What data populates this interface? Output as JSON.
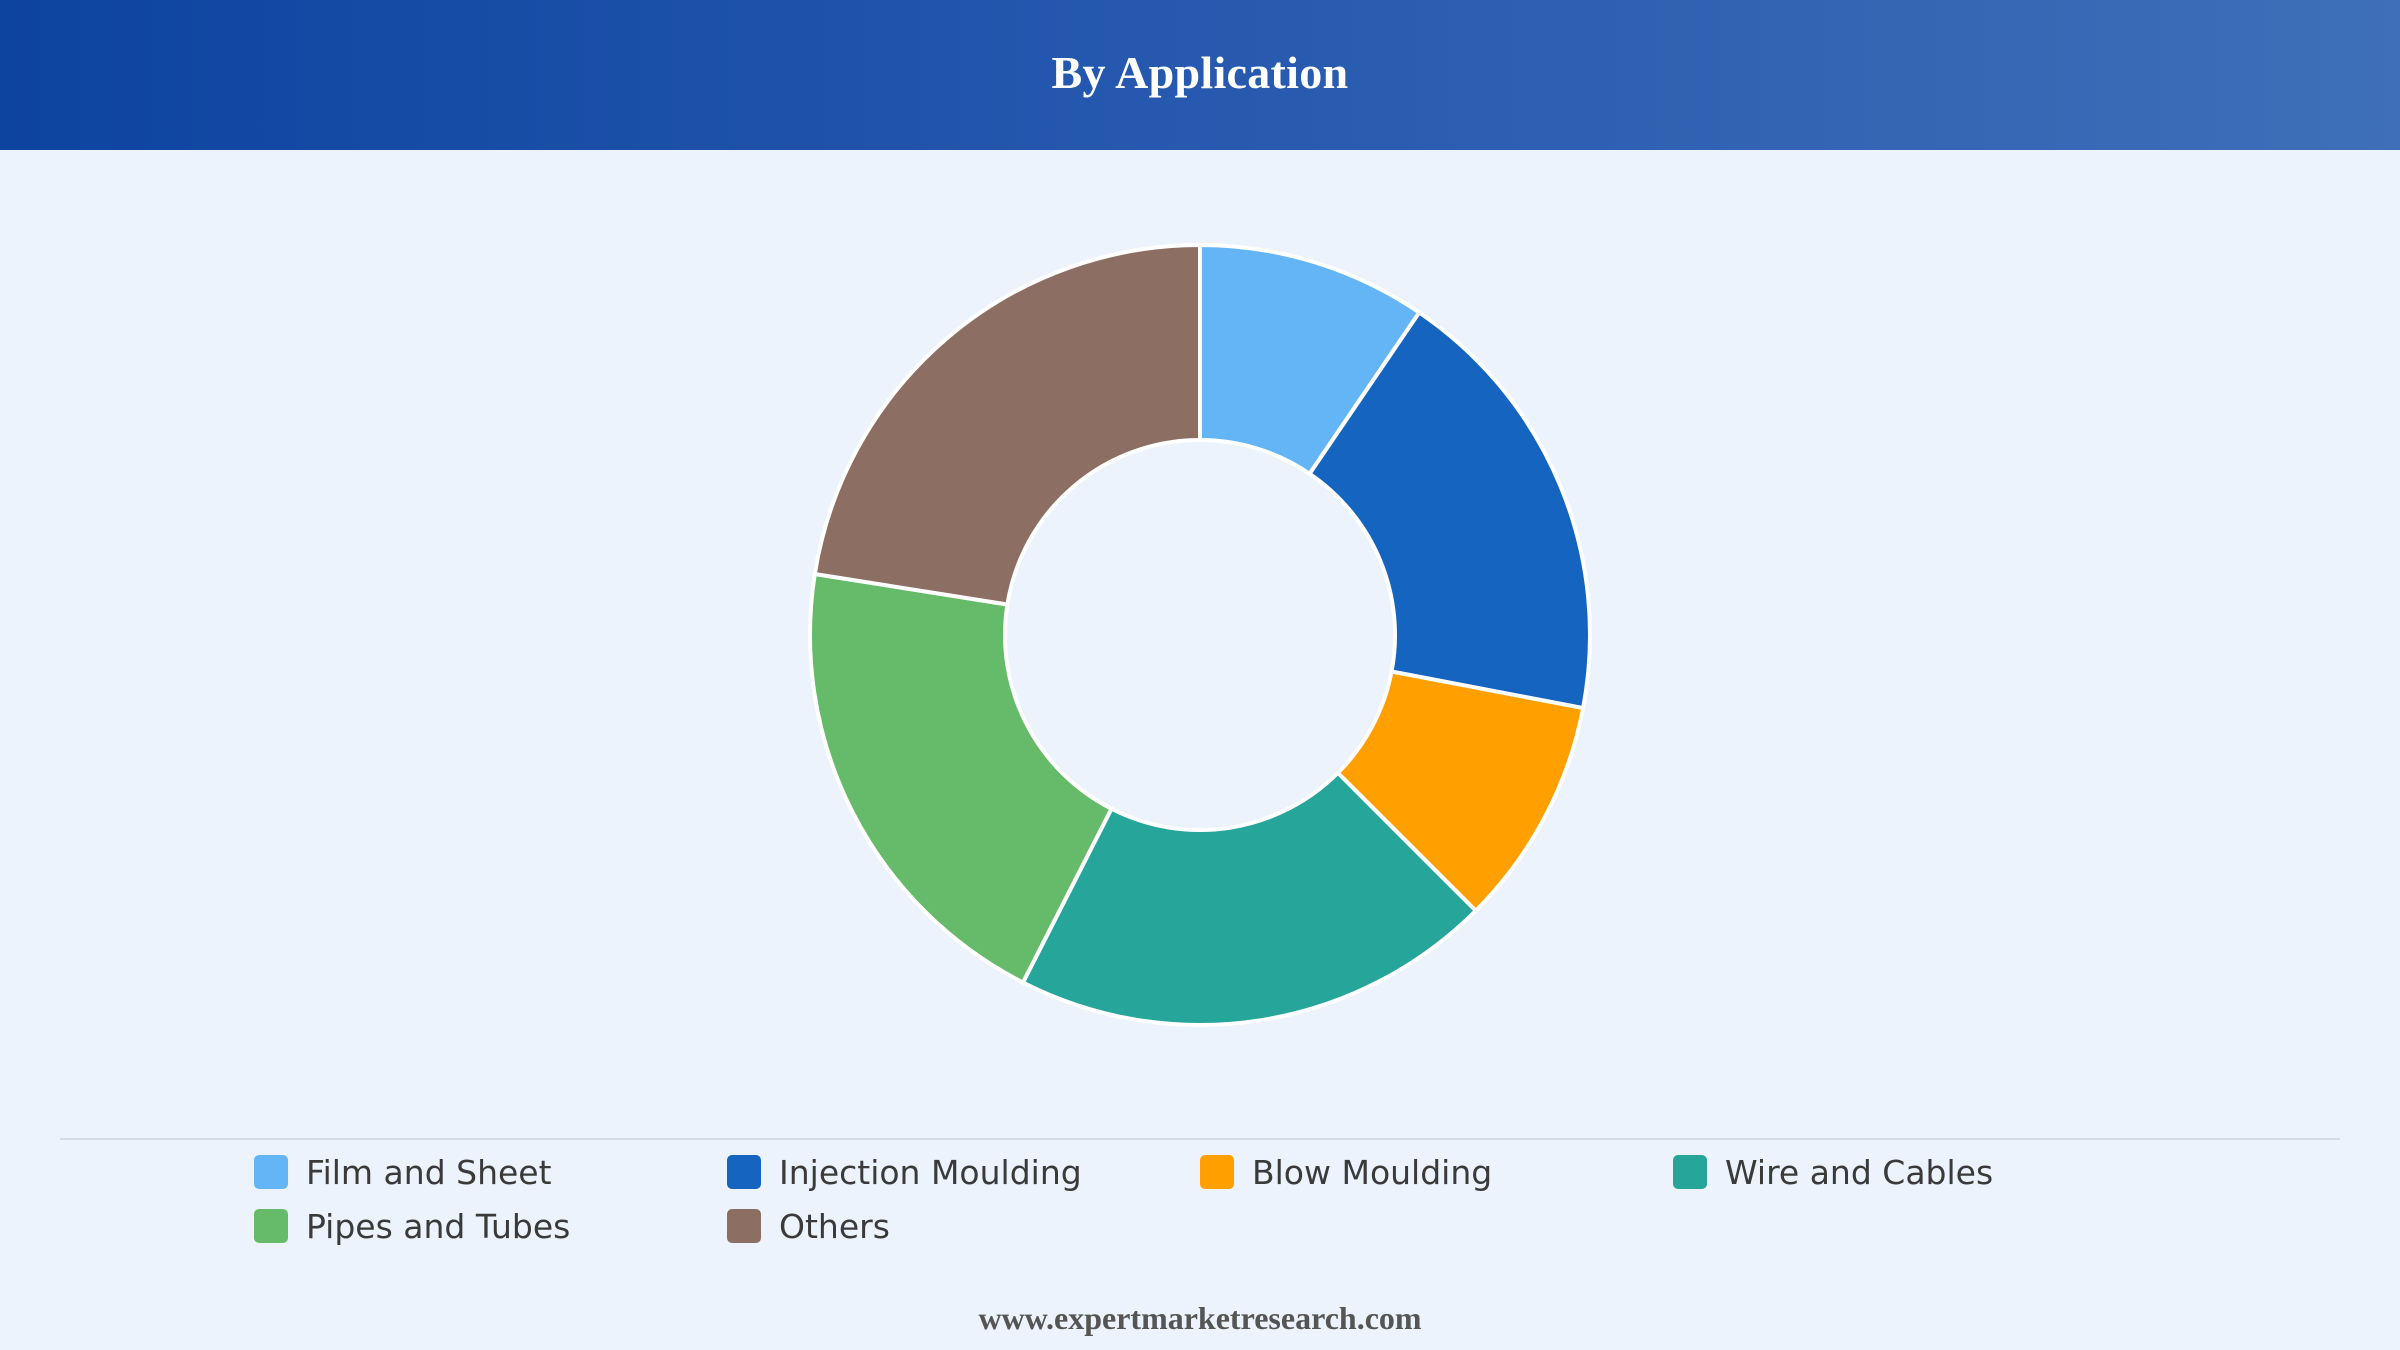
{
  "header": {
    "title": "By Application"
  },
  "chart_data": {
    "type": "pie",
    "title": "By Application",
    "donut": true,
    "legend_position": "bottom",
    "categories": [
      "Film and Sheet",
      "Injection Moulding",
      "Blow Moulding",
      "Wire and Cables",
      "Pipes and Tubes",
      "Others"
    ],
    "values": [
      9.5,
      18.5,
      9.5,
      20,
      20,
      22.5
    ],
    "colors": [
      "#64b5f6",
      "#1565c0",
      "#ffa000",
      "#26a69a",
      "#66bb6a",
      "#8d6e63"
    ]
  },
  "footer": {
    "source": "www.expertmarketresearch.com"
  }
}
